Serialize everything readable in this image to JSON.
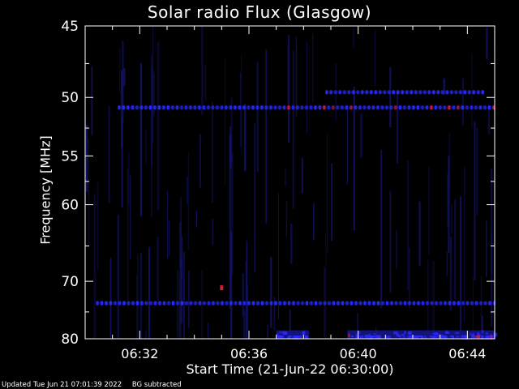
{
  "chart_data": {
    "type": "heatmap",
    "title": "Solar radio Flux (Glasgow)",
    "ylabel": "Frequency [MHz]",
    "xlabel": "Start Time (21-Jun-22 06:30:00)",
    "x_ticks": [
      "06:32",
      "06:36",
      "06:40",
      "06:44"
    ],
    "y_ticks": [
      "45",
      "50",
      "55",
      "60",
      "70",
      "80"
    ],
    "y_tick_values": [
      45,
      50,
      55,
      60,
      70,
      80
    ],
    "y_scale": "reciprocal",
    "ylim": [
      45,
      80
    ],
    "xlim_minutes": [
      0,
      15
    ],
    "x_tick_minutes": [
      2,
      6,
      10,
      14
    ],
    "colormap": {
      "background": "#000000",
      "low": "#14146e",
      "mid": "#2a2aff",
      "high": "#cc1f3a"
    },
    "features": [
      {
        "kind": "band",
        "freq_mhz": 50.8,
        "from_min": 1.2,
        "to_min": 15.0,
        "color": "#2a2aff",
        "hot_color": "#cc1f3a",
        "hot_from_min": 7.0
      },
      {
        "kind": "band",
        "freq_mhz": 49.6,
        "from_min": 8.8,
        "to_min": 14.6,
        "color": "#2a2aff"
      },
      {
        "kind": "band",
        "freq_mhz": 73.5,
        "from_min": 0.4,
        "to_min": 15.0,
        "color": "#2a2aff"
      },
      {
        "kind": "burst",
        "freq_mhz": 79.3,
        "from_min": 9.6,
        "to_min": 15.0,
        "color": "#2a2aff",
        "hot_color": "#cc1f3a"
      },
      {
        "kind": "burst",
        "freq_mhz": 79.3,
        "from_min": 7.0,
        "to_min": 8.2,
        "color": "#2a2aff"
      },
      {
        "kind": "spot",
        "freq_mhz": 71.0,
        "at_min": 5.0,
        "color": "#cc1f3a"
      }
    ]
  },
  "footer": {
    "updated": "Updated Tue Jun 21 07:01:39 2022",
    "note": "BG subtracted"
  }
}
